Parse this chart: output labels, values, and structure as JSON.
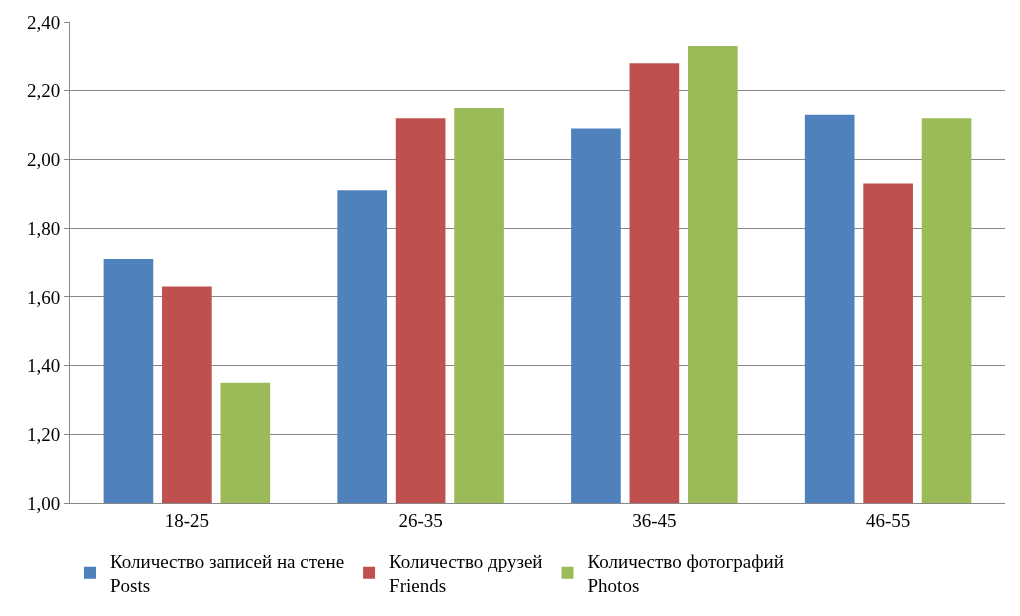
{
  "chart_data": {
    "type": "bar",
    "categories": [
      "18-25",
      "26-35",
      "36-45",
      "46-55"
    ],
    "series": [
      {
        "name": "Количество записей на стене\nPosts",
        "color": "#4f81bd",
        "values": [
          1.71,
          1.91,
          2.09,
          2.13
        ]
      },
      {
        "name": "Количество друзей\nFriends",
        "color": "#c0504d",
        "values": [
          1.63,
          2.12,
          2.28,
          1.93
        ]
      },
      {
        "name": "Количество фотографий\nPhotos",
        "color": "#9bbb59",
        "values": [
          1.35,
          2.15,
          2.33,
          2.12
        ]
      }
    ],
    "ylim": [
      1.0,
      2.4
    ],
    "yticks": [
      {
        "value": 1.0,
        "label": "1,00"
      },
      {
        "value": 1.2,
        "label": "1,20"
      },
      {
        "value": 1.4,
        "label": "1,40"
      },
      {
        "value": 1.6,
        "label": "1,60"
      },
      {
        "value": 1.8,
        "label": "1,80"
      },
      {
        "value": 2.0,
        "label": "2,00"
      },
      {
        "value": 2.2,
        "label": "2,20"
      },
      {
        "value": 2.4,
        "label": "2,40"
      }
    ],
    "grid": "y",
    "legend": "bottom"
  }
}
